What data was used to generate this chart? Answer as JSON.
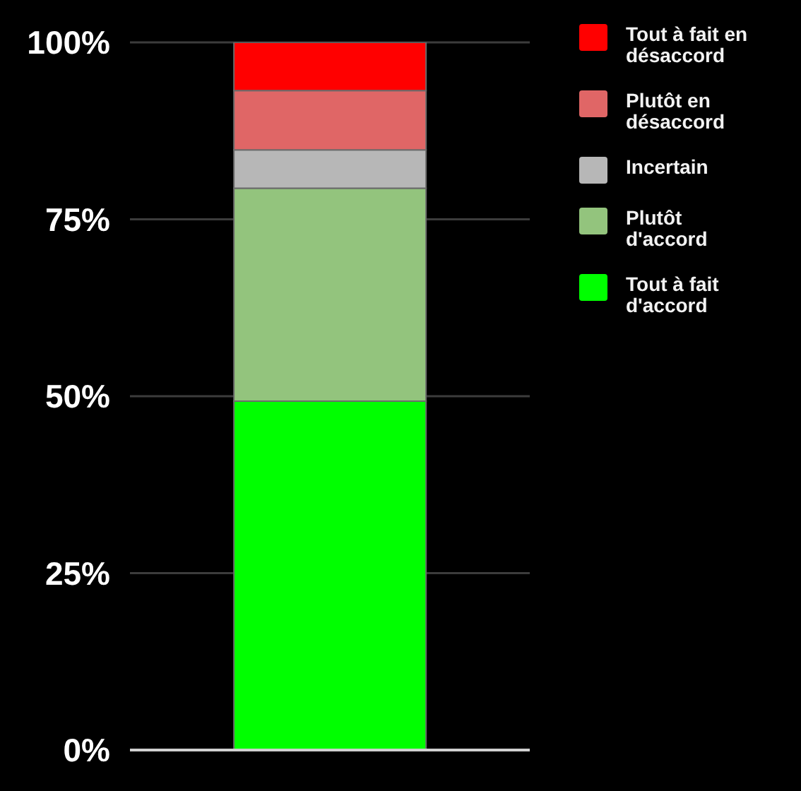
{
  "chart_data": {
    "type": "bar",
    "categories": [
      null
    ],
    "stacked": true,
    "series": [
      {
        "name": "Tout à fait d'accord",
        "color": "#00ff00",
        "values": [
          49.3
        ]
      },
      {
        "name": "Plutôt d'accord",
        "color": "#93c47d",
        "values": [
          30.1
        ]
      },
      {
        "name": "Incertain",
        "color": "#b7b7b7",
        "values": [
          5.4
        ]
      },
      {
        "name": "Plutôt en désaccord",
        "color": "#e06666",
        "values": [
          8.4
        ]
      },
      {
        "name": "Tout à fait en désaccord",
        "color": "#ff0000",
        "values": [
          6.8
        ]
      }
    ],
    "ylim": [
      0,
      100
    ],
    "yticks": [
      {
        "value": 0,
        "label": "0%"
      },
      {
        "value": 25,
        "label": "25%"
      },
      {
        "value": 50,
        "label": "50%"
      },
      {
        "value": 75,
        "label": "75%"
      },
      {
        "value": 100,
        "label": "100%"
      }
    ],
    "grid": "y",
    "legend": "right"
  }
}
